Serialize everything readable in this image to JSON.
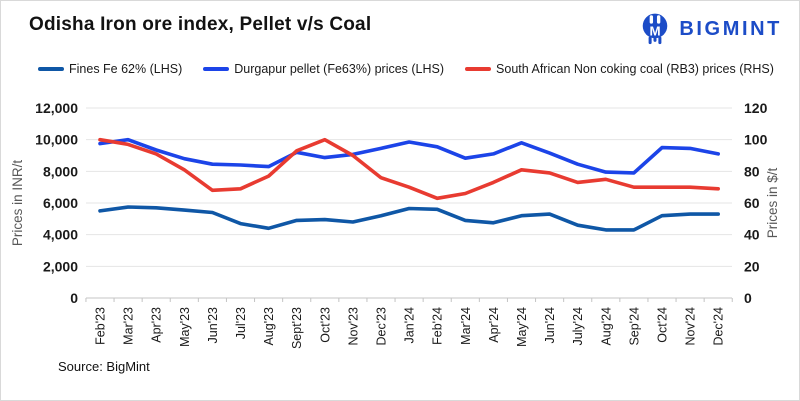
{
  "header": {
    "title": "Odisha Iron ore index, Pellet v/s Coal",
    "logo_text": "BIGMINT",
    "logo_color": "#1C4CC7"
  },
  "footer": {
    "source": "Source: BigMint"
  },
  "chart_data": {
    "type": "line",
    "title": "Odisha Iron ore index, Pellet v/s Coal",
    "legend_position": "top",
    "grid": true,
    "categories": [
      "Feb'23",
      "Mar'23",
      "Apr'23",
      "May'23",
      "Jun'23",
      "Jul'23",
      "Aug'23",
      "Sept'23",
      "Oct'23",
      "Nov'23",
      "Dec'23",
      "Jan'24",
      "Feb'24",
      "Mar'24",
      "Apr'24",
      "May'24",
      "Jun'24",
      "July'24",
      "Aug'24",
      "Sep'24",
      "Oct'24",
      "Nov'24",
      "Dec'24"
    ],
    "left_axis": {
      "label": "Prices in INR/t",
      "min": 0,
      "max": 12000,
      "step": 2000,
      "tick_labels": [
        "0",
        "2,000",
        "4,000",
        "6,000",
        "8,000",
        "10,000",
        "12,000"
      ]
    },
    "right_axis": {
      "label": "Prices in $/t",
      "min": 0,
      "max": 120,
      "step": 20,
      "tick_labels": [
        "0",
        "20",
        "40",
        "60",
        "80",
        "100",
        "120"
      ]
    },
    "series": [
      {
        "name": "Fines Fe 62% (LHS)",
        "axis": "left",
        "color": "#0F57A6",
        "values": [
          5500,
          5750,
          5700,
          5550,
          5400,
          4700,
          4400,
          4900,
          4950,
          4800,
          5200,
          5650,
          5600,
          4900,
          4750,
          5200,
          5300,
          4600,
          4300,
          4300,
          5200,
          5300,
          5300
        ]
      },
      {
        "name": "Durgapur pellet (Fe63%) prices (LHS)",
        "axis": "left",
        "color": "#1C44E8",
        "values": [
          9750,
          10000,
          9350,
          8800,
          8450,
          8400,
          8300,
          9200,
          8870,
          9070,
          9450,
          9850,
          9550,
          8830,
          9100,
          9800,
          9150,
          8450,
          7950,
          7900,
          9500,
          9450,
          9100
        ]
      },
      {
        "name": "South African Non coking coal (RB3) prices (RHS)",
        "axis": "right",
        "color": "#E83B31",
        "values": [
          100,
          97,
          91,
          81,
          68,
          69,
          77,
          93,
          100,
          90,
          76,
          70,
          63,
          66,
          73,
          81,
          79,
          73,
          75,
          70,
          70,
          70,
          69
        ]
      }
    ]
  }
}
